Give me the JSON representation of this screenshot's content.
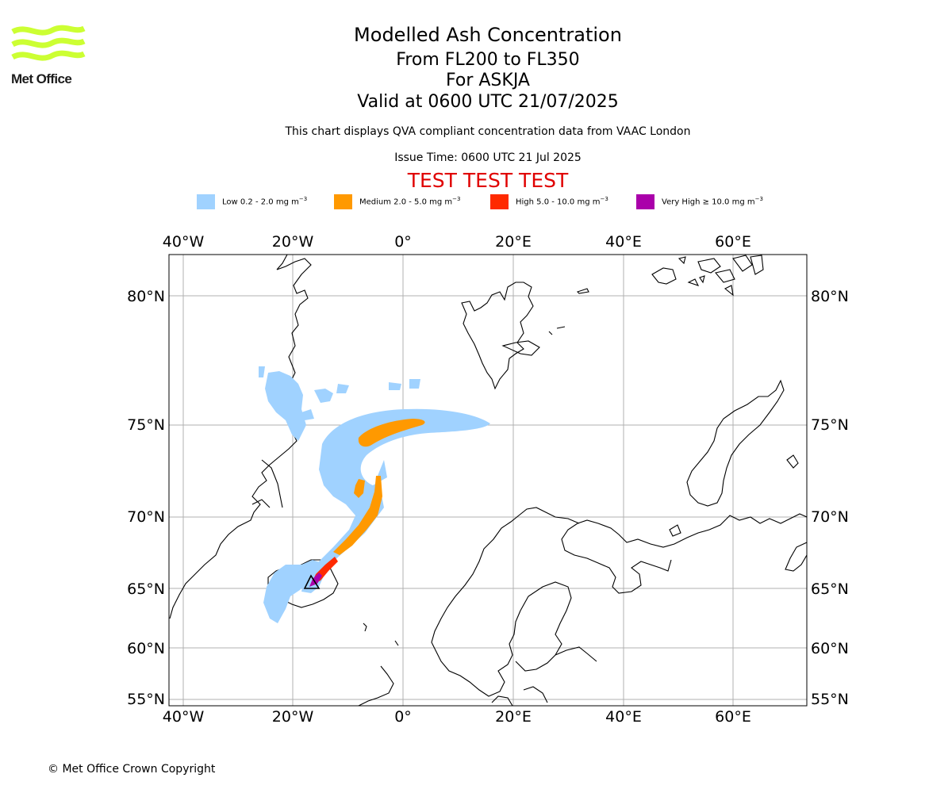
{
  "header": {
    "title": "Modelled Ash Concentration",
    "levels": "From FL200 to FL350",
    "volcano": "For ASKJA",
    "valid": "Valid at 0600 UTC 21/07/2025",
    "note": "This chart displays QVA compliant concentration data from VAAC London",
    "issue": "Issue Time: 0600 UTC 21 Jul 2025",
    "test_banner": "TEST TEST TEST"
  },
  "logo": {
    "text": "Met Office",
    "color": "#ccff33"
  },
  "legend": [
    {
      "label": "Low 0.2 - 2.0 mg m",
      "unit_exp": "−3",
      "color": "#a0d2ff"
    },
    {
      "label": "Medium 2.0 - 5.0 mg m",
      "unit_exp": "−3",
      "color": "#ff9900"
    },
    {
      "label": "High 5.0 - 10.0 mg m",
      "unit_exp": "−3",
      "color": "#ff2a00"
    },
    {
      "label": "Very High  ≥  10.0 mg m",
      "unit_exp": "−3",
      "color": "#aa00aa"
    }
  ],
  "map": {
    "lon_labels": [
      "40°W",
      "20°W",
      "0°",
      "20°E",
      "40°E",
      "60°E"
    ],
    "lat_labels": [
      "80°N",
      "75°N",
      "70°N",
      "65°N",
      "60°N",
      "55°N"
    ],
    "volcano_marker": "triangle-icon"
  },
  "footer": {
    "copyright": "© Met Office Crown Copyright"
  }
}
